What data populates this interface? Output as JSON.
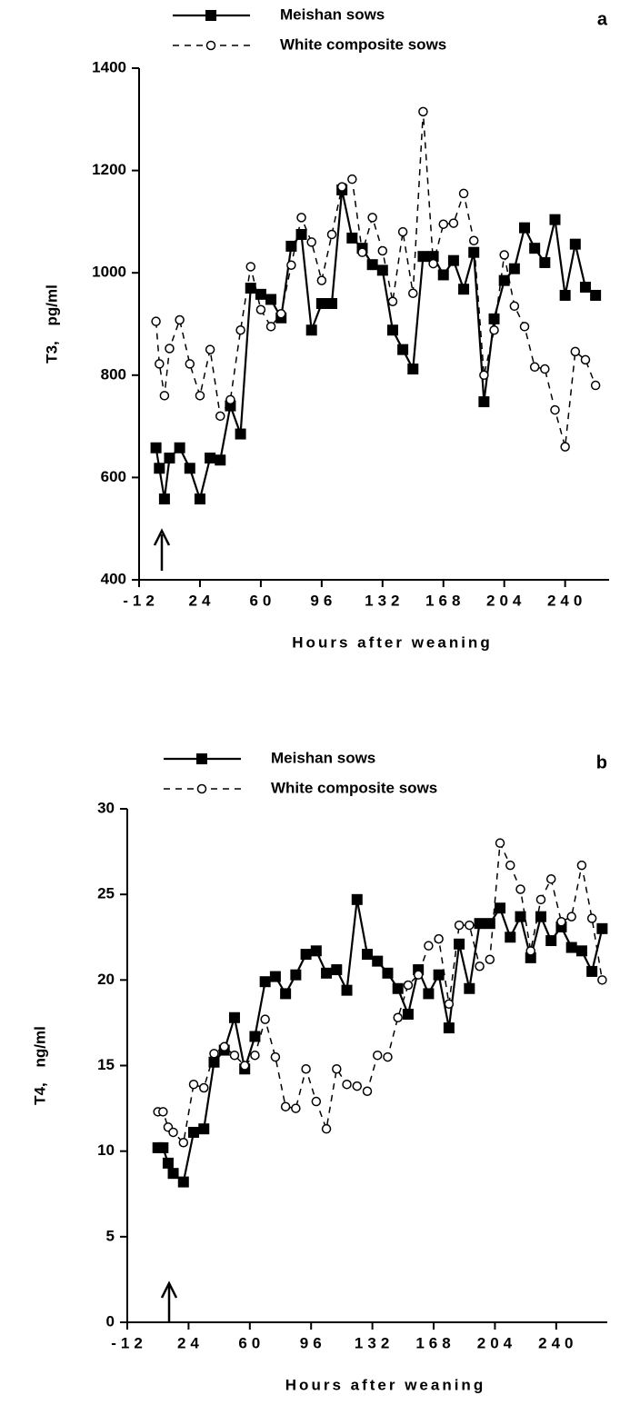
{
  "chart_data": [
    {
      "type": "line",
      "panel_label": "a",
      "x_label": "Hours after weaning",
      "y_label": "T3, pg/ml",
      "x": [
        -2,
        0,
        3,
        6,
        12,
        18,
        24,
        30,
        36,
        42,
        48,
        54,
        60,
        66,
        72,
        78,
        84,
        90,
        96,
        102,
        108,
        114,
        120,
        126,
        132,
        138,
        144,
        150,
        156,
        162,
        168,
        174,
        180,
        186,
        192,
        198,
        204,
        210,
        216,
        222,
        228,
        234,
        240,
        246,
        252,
        258
      ],
      "series": [
        {
          "name": "Meishan sows",
          "color": "#000000",
          "line_style": "solid",
          "marker": "square",
          "values": [
            658,
            618,
            558,
            638,
            658,
            618,
            558,
            638,
            634,
            740,
            685,
            970,
            958,
            948,
            912,
            1052,
            1075,
            888,
            940,
            940,
            1162,
            1068,
            1048,
            1016,
            1005,
            888,
            850,
            812,
            1032,
            1032,
            996,
            1024,
            968,
            1040,
            748,
            910,
            985,
            1008,
            1088,
            1048,
            1020,
            1104,
            956,
            1056,
            972,
            956
          ]
        },
        {
          "name": "White composite sows",
          "color": "#000000",
          "line_style": "dashed",
          "marker": "circle",
          "values": [
            905,
            822,
            760,
            852,
            908,
            822,
            760,
            850,
            720,
            752,
            888,
            1012,
            928,
            895,
            920,
            1015,
            1108,
            1060,
            985,
            1075,
            1168,
            1183,
            1040,
            1108,
            1043,
            944,
            1080,
            960,
            1315,
            1018,
            1095,
            1097,
            1155,
            1063,
            800,
            888,
            1035,
            935,
            895,
            816,
            812,
            732,
            660,
            846,
            830,
            780
          ]
        }
      ],
      "xlim": [
        -12,
        266
      ],
      "xticks": [
        -12,
        24,
        60,
        96,
        132,
        168,
        204,
        240
      ],
      "ylim": [
        400,
        1400
      ],
      "yticks": [
        400,
        600,
        800,
        1000,
        1200,
        1400
      ]
    },
    {
      "type": "line",
      "panel_label": "b",
      "x_label": "Hours after weaning",
      "y_label": "T4, ng/ml",
      "x": [
        6,
        9,
        12,
        15,
        21,
        27,
        33,
        39,
        45,
        51,
        57,
        63,
        69,
        75,
        81,
        87,
        93,
        99,
        105,
        111,
        117,
        123,
        129,
        135,
        141,
        147,
        153,
        159,
        165,
        171,
        177,
        183,
        189,
        195,
        201,
        207,
        213,
        219,
        225,
        231,
        237,
        243,
        249,
        255,
        261,
        267
      ],
      "series": [
        {
          "name": "Meishan sows",
          "color": "#000000",
          "line_style": "solid",
          "marker": "square",
          "values": [
            10.2,
            10.2,
            9.3,
            8.7,
            8.2,
            11.1,
            11.3,
            15.2,
            15.9,
            17.8,
            14.8,
            16.7,
            19.9,
            20.2,
            19.2,
            20.3,
            21.5,
            21.7,
            20.4,
            20.6,
            19.4,
            24.7,
            21.5,
            21.1,
            20.4,
            19.5,
            18.0,
            20.6,
            19.2,
            20.3,
            17.2,
            22.1,
            19.5,
            23.3,
            23.3,
            24.2,
            22.5,
            23.7,
            21.3,
            23.7,
            22.3,
            23.1,
            21.9,
            21.7,
            20.5,
            23.0
          ]
        },
        {
          "name": "White composite sows",
          "color": "#000000",
          "line_style": "dashed",
          "marker": "circle",
          "values": [
            12.3,
            12.3,
            11.4,
            11.1,
            10.5,
            13.9,
            13.7,
            15.7,
            16.1,
            15.6,
            15.0,
            15.6,
            17.7,
            15.5,
            12.6,
            12.5,
            14.8,
            12.9,
            11.3,
            14.8,
            13.9,
            13.8,
            13.5,
            15.6,
            15.5,
            17.8,
            19.7,
            20.3,
            22.0,
            22.4,
            18.6,
            23.2,
            23.2,
            20.8,
            21.2,
            28.0,
            26.7,
            25.3,
            21.7,
            24.7,
            25.9,
            23.4,
            23.7,
            26.7,
            23.6,
            20.0
          ]
        }
      ],
      "xlim": [
        -12,
        270
      ],
      "xticks": [
        -12,
        24,
        60,
        96,
        132,
        168,
        204,
        240
      ],
      "ylim": [
        0,
        30
      ],
      "yticks": [
        0,
        5,
        10,
        15,
        20,
        25,
        30
      ]
    }
  ]
}
